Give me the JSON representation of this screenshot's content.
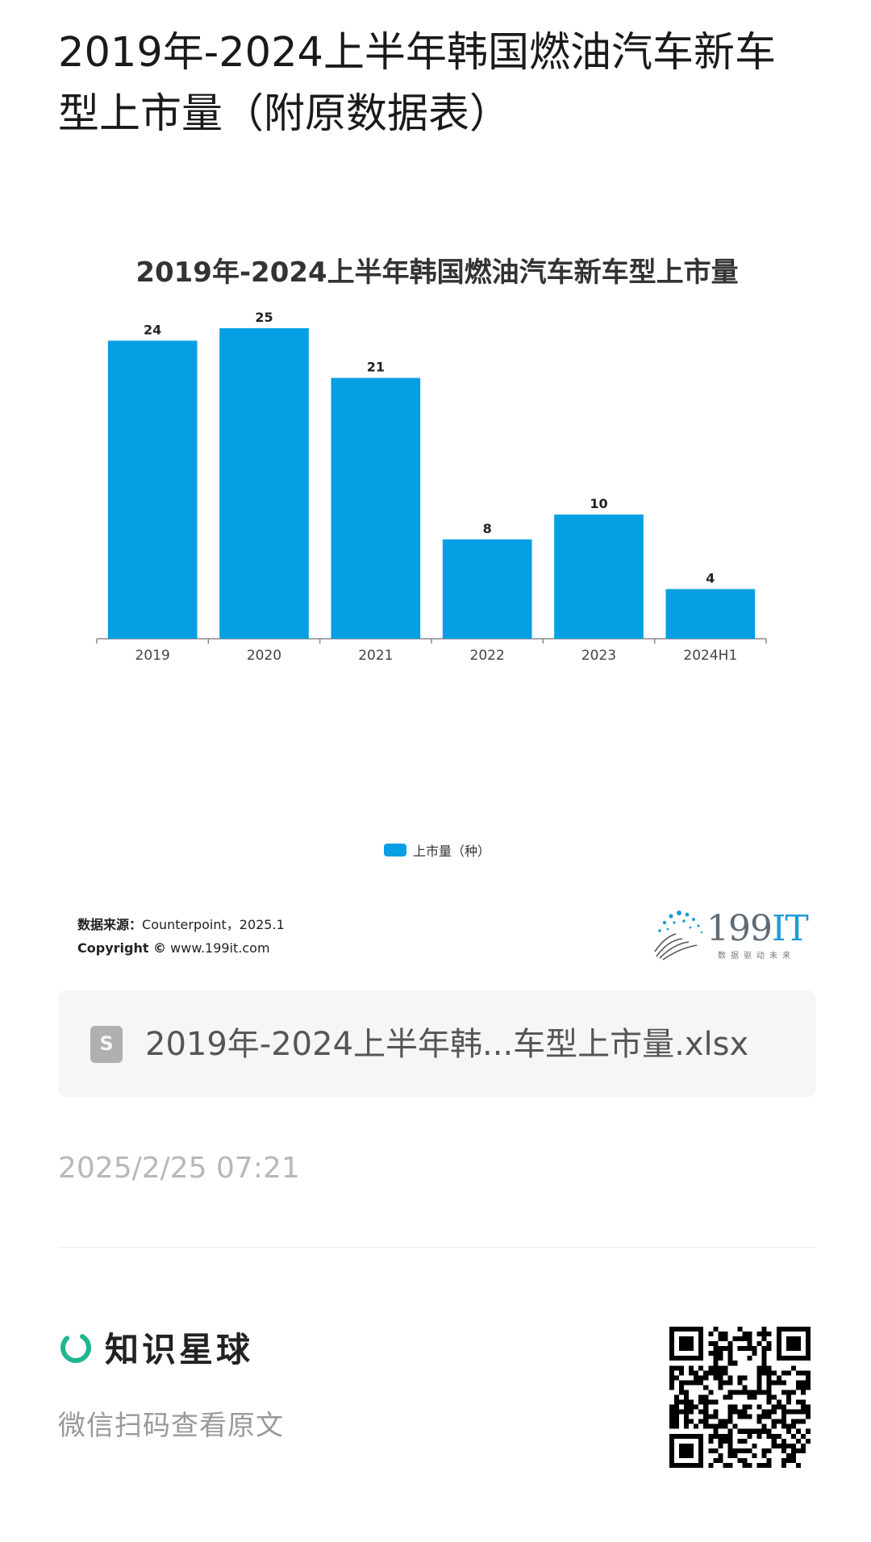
{
  "page": {
    "title": "2019年-2024上半年韩国燃油汽车新车型上市量（附原数据表）"
  },
  "chart": {
    "source_line": "数据来源：Counterpoint，2025.1",
    "source_label": "数据来源：",
    "source_value": "Counterpoint，2025.1",
    "copyright_label": "Copyright ©",
    "copyright_value": "www.199it.com"
  },
  "logo": {
    "num": "199",
    "it": "IT",
    "slogan": "数据驱动未来"
  },
  "chart_data": {
    "type": "bar",
    "title": "2019年-2024上半年韩国燃油汽车新车型上市量",
    "categories": [
      "2019",
      "2020",
      "2021",
      "2022",
      "2023",
      "2024H1"
    ],
    "series": [
      {
        "name": "上市量（种）",
        "values": [
          24,
          25,
          21,
          8,
          10,
          4
        ]
      }
    ],
    "ylim": [
      0,
      25
    ],
    "grid": false,
    "legend_position": "bottom",
    "bar_color": "#079fe3",
    "data_labels": true
  },
  "attachment": {
    "file_name": "2019年-2024上半年韩...车型上市量.xlsx",
    "icon_letter": "S"
  },
  "post": {
    "timestamp": "2025/2/25 07:21"
  },
  "footer": {
    "brand_name": "知识星球",
    "subtitle": "微信扫码查看原文",
    "brand_color": "#1fb58f"
  }
}
